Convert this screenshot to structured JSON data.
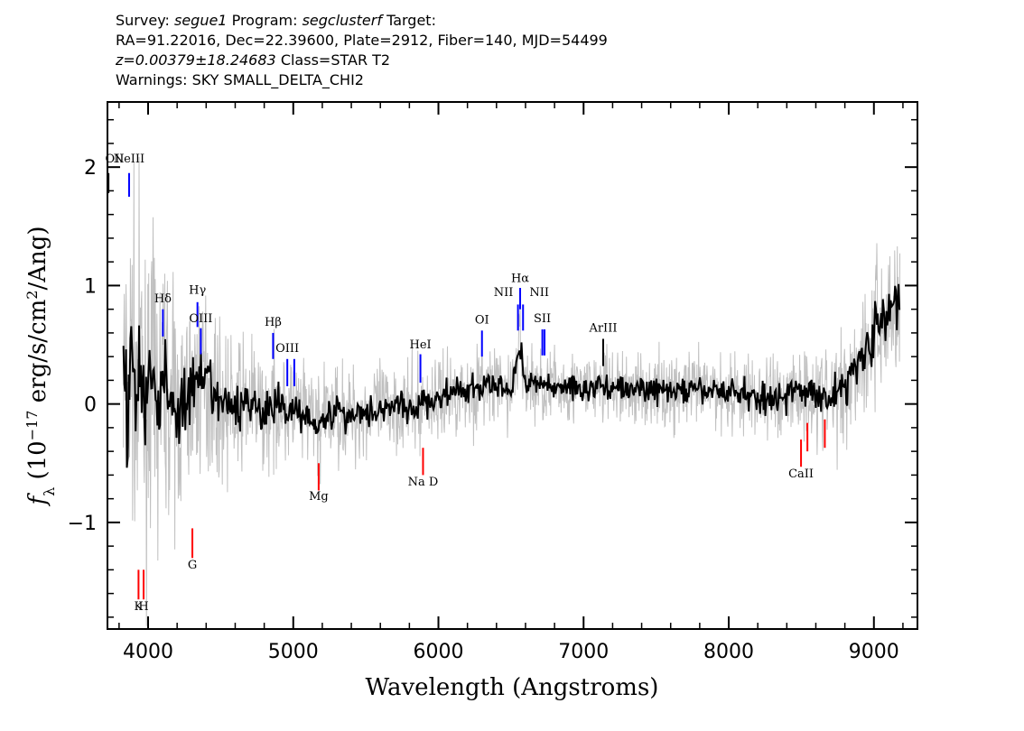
{
  "header": {
    "line1": {
      "survey_label": "Survey:",
      "survey": "segue1",
      "program_label": "Program:",
      "program": "segclusterf",
      "target_label": "Target:"
    },
    "line2": "RA=91.22016, Dec=22.39600, Plate=2912, Fiber=140, MJD=54499",
    "line3": {
      "redshift": "z=0.00379±18.24683",
      "class": "Class=STAR T2"
    },
    "line4": "Warnings: SKY SMALL_DELTA_CHI2"
  },
  "chart_data": {
    "type": "line",
    "xlabel": "Wavelength (Angstroms)",
    "ylabel": "f_λ (10^-17 erg/s/cm^2/Ang)",
    "xlim": [
      3720,
      9300
    ],
    "ylim": [
      -1.9,
      2.55
    ],
    "x_ticks": [
      4000,
      5000,
      6000,
      7000,
      8000,
      9000
    ],
    "y_ticks": [
      -1,
      0,
      1,
      2
    ],
    "x_tick_labels": [
      "4000",
      "5000",
      "6000",
      "7000",
      "8000",
      "9000"
    ],
    "y_tick_labels": [
      "−1",
      "0",
      "1",
      "2"
    ],
    "grid": false,
    "series": [
      {
        "role": "flux",
        "color": "#000000",
        "x": [
          3830,
          3860,
          3890,
          3920,
          3950,
          3980,
          4010,
          4050,
          4100,
          4150,
          4200,
          4300,
          4400,
          4500,
          4600,
          4700,
          4800,
          4900,
          5000,
          5100,
          5200,
          5300,
          5400,
          5500,
          5600,
          5700,
          5800,
          5900,
          6000,
          6100,
          6200,
          6300,
          6400,
          6500,
          6560,
          6600,
          6700,
          6800,
          6900,
          7000,
          7100,
          7200,
          7300,
          7400,
          7500,
          7600,
          7700,
          7800,
          7900,
          8000,
          8100,
          8200,
          8300,
          8400,
          8500,
          8600,
          8700,
          8800,
          8900,
          9000,
          9100,
          9180
        ],
        "y": [
          0.3,
          -0.1,
          0.5,
          0.0,
          0.4,
          -0.2,
          0.3,
          0.0,
          0.2,
          0.1,
          -0.1,
          0.1,
          0.2,
          0.0,
          -0.05,
          0.05,
          -0.1,
          0.0,
          -0.05,
          -0.1,
          -0.15,
          -0.05,
          -0.1,
          -0.05,
          -0.05,
          0.0,
          -0.05,
          0.0,
          0.05,
          0.1,
          0.1,
          0.15,
          0.15,
          0.1,
          0.5,
          0.2,
          0.15,
          0.15,
          0.15,
          0.12,
          0.15,
          0.15,
          0.12,
          0.12,
          0.12,
          0.1,
          0.12,
          0.1,
          0.12,
          0.1,
          0.1,
          0.05,
          0.05,
          0.08,
          0.1,
          0.1,
          0.05,
          0.15,
          0.4,
          0.6,
          0.75,
          0.9
        ]
      },
      {
        "role": "noise",
        "color": "#c0c0c0",
        "x": [
          3830,
          4000,
          4200,
          4400,
          4600,
          4800,
          5000,
          5500,
          6000,
          6500,
          7000,
          7500,
          8000,
          8500,
          8800,
          9000,
          9180
        ],
        "y": [
          0.6,
          0.55,
          0.4,
          0.3,
          0.25,
          0.22,
          0.2,
          0.18,
          0.16,
          0.15,
          0.14,
          0.14,
          0.15,
          0.18,
          0.22,
          0.28,
          0.35
        ]
      }
    ],
    "emission_lines": [
      {
        "label": "OII",
        "x": 3727,
        "y1": 1.95,
        "y2": 1.78,
        "color": "#000000",
        "label_y": 2.04
      },
      {
        "label": "NeIII",
        "x": 3869,
        "y1": 1.95,
        "y2": 1.75,
        "color": "#0000ff",
        "label_y": 2.04
      },
      {
        "label": "Hδ",
        "x": 4102,
        "y1": 0.8,
        "y2": 0.57,
        "color": "#0000ff",
        "label_y": 0.86
      },
      {
        "label": "Hγ",
        "x": 4340,
        "y1": 0.86,
        "y2": 0.65,
        "color": "#0000ff",
        "label_y": 0.93
      },
      {
        "label": "OIII",
        "x": 4363,
        "y1": 0.64,
        "y2": 0.42,
        "color": "#0000ff",
        "label_y": 0.69
      },
      {
        "label": "Hβ",
        "x": 4861,
        "y1": 0.6,
        "y2": 0.38,
        "color": "#0000ff",
        "label_y": 0.66
      },
      {
        "label": "OIII",
        "x": 4959,
        "y1": 0.38,
        "y2": 0.15,
        "color": "#0000ff",
        "label_y": 0.44
      },
      {
        "label": "OIII",
        "x": 5007,
        "y1": 0.38,
        "y2": 0.15,
        "color": "#0000ff",
        "label_y": null
      },
      {
        "label": "HeI",
        "x": 5876,
        "y1": 0.42,
        "y2": 0.18,
        "color": "#0000ff",
        "label_y": 0.47
      },
      {
        "label": "OI",
        "x": 6300,
        "y1": 0.62,
        "y2": 0.4,
        "color": "#0000ff",
        "label_y": 0.68
      },
      {
        "label": "NII",
        "x": 6548,
        "y1": 0.84,
        "y2": 0.62,
        "color": "#0000ff",
        "label_y": 0.91
      },
      {
        "label": "Hα",
        "x": 6563,
        "y1": 0.98,
        "y2": 0.8,
        "color": "#0000ff",
        "label_y": 1.03
      },
      {
        "label": "NII",
        "x": 6583,
        "y1": 0.84,
        "y2": 0.62,
        "color": "#0000ff",
        "label_y": 0.91
      },
      {
        "label": "SII",
        "x": 6716,
        "y1": 0.63,
        "y2": 0.41,
        "color": "#0000ff",
        "label_y": 0.69
      },
      {
        "label": "SII",
        "x": 6731,
        "y1": 0.63,
        "y2": 0.41,
        "color": "#0000ff",
        "label_y": null
      },
      {
        "label": "ArIII",
        "x": 7135,
        "y1": 0.55,
        "y2": 0.32,
        "color": "#000000",
        "label_y": 0.61
      }
    ],
    "absorption_lines": [
      {
        "label": "K",
        "x": 3934,
        "y1": -1.4,
        "y2": -1.65,
        "color": "#ff0000",
        "label_y": -1.74
      },
      {
        "label": "H",
        "x": 3969,
        "y1": -1.4,
        "y2": -1.65,
        "color": "#ff0000",
        "label_y": -1.74
      },
      {
        "label": "G",
        "x": 4305,
        "y1": -1.05,
        "y2": -1.3,
        "color": "#ff0000",
        "label_y": -1.39
      },
      {
        "label": "Mg",
        "x": 5175,
        "y1": -0.5,
        "y2": -0.73,
        "color": "#ff0000",
        "label_y": -0.81
      },
      {
        "label": "Na D",
        "x": 5894,
        "y1": -0.37,
        "y2": -0.6,
        "color": "#ff0000",
        "label_y": -0.69
      },
      {
        "label": "CaII",
        "x": 8498,
        "y1": -0.3,
        "y2": -0.53,
        "color": "#ff0000",
        "label_y": -0.62
      },
      {
        "label": "CaII",
        "x": 8542,
        "y1": -0.16,
        "y2": -0.4,
        "color": "#ff0000",
        "label_y": null
      },
      {
        "label": "CaII",
        "x": 8662,
        "y1": -0.13,
        "y2": -0.37,
        "color": "#ff0000",
        "label_y": null
      }
    ]
  }
}
